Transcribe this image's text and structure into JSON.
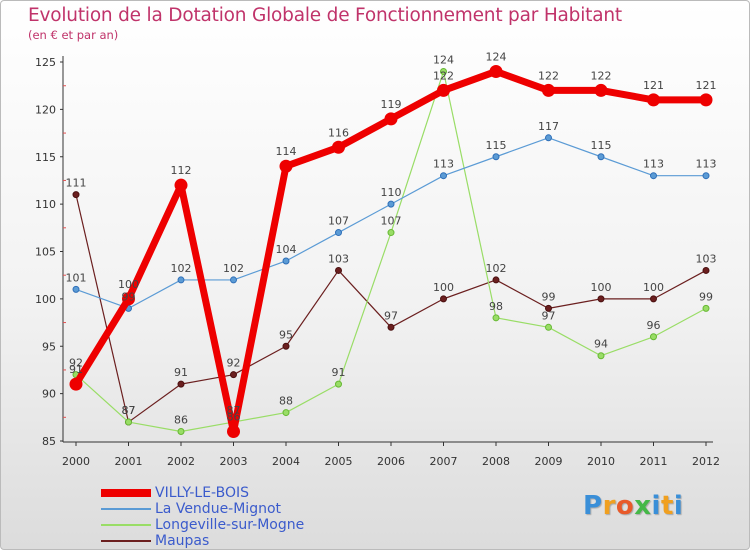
{
  "chart_data": {
    "type": "line",
    "title": "Evolution de la Dotation Globale de Fonctionnement par Habitant",
    "subtitle": "(en € et par an)",
    "categories": [
      "2000",
      "2001",
      "2002",
      "2003",
      "2004",
      "2005",
      "2006",
      "2007",
      "2008",
      "2009",
      "2010",
      "2011",
      "2012"
    ],
    "ylim": [
      85,
      125
    ],
    "yticks": [
      85,
      90,
      95,
      100,
      105,
      110,
      115,
      120,
      125
    ],
    "grid": false,
    "legend_position": "bottom-left",
    "series": [
      {
        "name": "VILLY-LE-BOIS",
        "color": "#ee0000",
        "values": [
          91,
          100,
          112,
          86,
          114,
          116,
          119,
          122,
          124,
          122,
          122,
          121,
          121
        ]
      },
      {
        "name": "La Vendue-Mignot",
        "color": "#5b9bd5",
        "values": [
          101,
          99,
          102,
          102,
          104,
          107,
          110,
          113,
          115,
          117,
          115,
          113,
          113
        ]
      },
      {
        "name": "Longeville-sur-Mogne",
        "color": "#99dd66",
        "values": [
          92,
          87,
          86,
          87,
          88,
          91,
          107,
          124,
          98,
          97,
          94,
          96,
          99
        ]
      },
      {
        "name": "Maupas",
        "color": "#6b1f1f",
        "values": [
          111,
          87,
          91,
          92,
          95,
          103,
          97,
          100,
          102,
          99,
          100,
          100,
          103
        ]
      }
    ]
  },
  "logo": {
    "p": "P",
    "r": "r",
    "o": "o",
    "x": "x",
    "i": "i",
    "t": "t",
    "i2": "i"
  }
}
